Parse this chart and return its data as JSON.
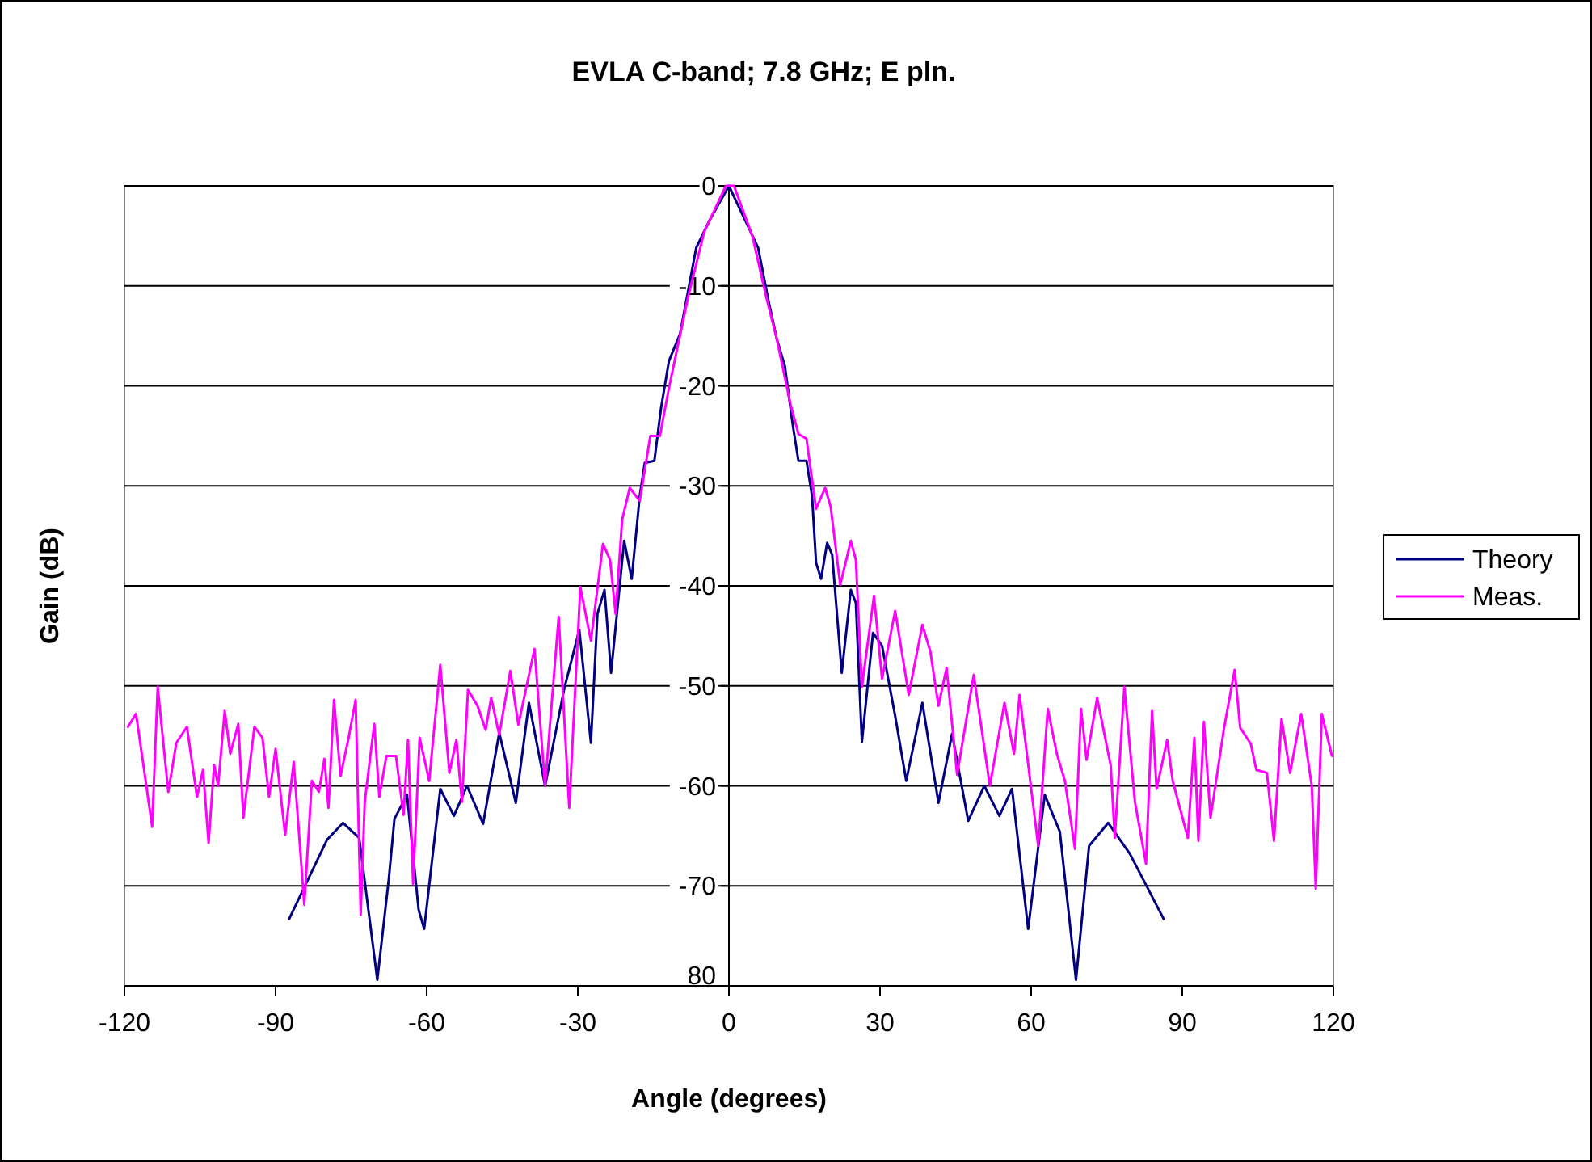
{
  "chart_data": {
    "type": "line",
    "title": "EVLA C-band; 7.8 GHz; E pln.",
    "xlabel": "Angle (degrees)",
    "ylabel": "Gain (dB)",
    "xlim": [
      -120,
      120
    ],
    "xticks": [
      -120,
      -90,
      -60,
      -30,
      0,
      30,
      60,
      90,
      120
    ],
    "ylim": [
      -80,
      0
    ],
    "yticks": [
      {
        "value": 0,
        "label": "0"
      },
      {
        "value": -10,
        "label": "-10"
      },
      {
        "value": -20,
        "label": "-20"
      },
      {
        "value": -30,
        "label": "-30"
      },
      {
        "value": -40,
        "label": "-40"
      },
      {
        "value": -50,
        "label": "-50"
      },
      {
        "value": -60,
        "label": "-60"
      },
      {
        "value": -70,
        "label": "-70"
      },
      {
        "value": -80,
        "label": "80"
      }
    ],
    "grid": "y",
    "legend": "right",
    "marker": "none",
    "line_style": "solid",
    "series": [
      {
        "name": "Theory",
        "color": "#000080",
        "x": [
          -87.3,
          -79.8,
          -76.6,
          -73.4,
          -69.8,
          -67.5,
          -66.4,
          -63.9,
          -61.6,
          -60.5,
          -57.3,
          -54.6,
          -52,
          -48.8,
          -45.6,
          -42.3,
          -39.7,
          -36.5,
          -32.7,
          -29.7,
          -27.4,
          -26.1,
          -24.7,
          -23.4,
          -20.8,
          -19.3,
          -17.7,
          -16.7,
          -14.8,
          -13.5,
          -11.9,
          -9.7,
          -6.5,
          -3.9,
          0,
          5.8,
          7.9,
          9.5,
          11.1,
          12.7,
          13.8,
          15.4,
          16.5,
          17.3,
          18.3,
          19.5,
          20.5,
          22.4,
          24.2,
          25.2,
          26.4,
          28.6,
          30.4,
          33,
          35.2,
          38.4,
          41.6,
          44.3,
          47.5,
          50.7,
          53.7,
          56.2,
          59.4,
          62.7,
          65.7,
          68.9,
          71.5,
          75.3,
          79.6,
          86.3
        ],
        "values": [
          -73.3,
          -65.4,
          -63.7,
          -65.2,
          -79.4,
          -69.2,
          -63.3,
          -60.9,
          -72.4,
          -74.3,
          -60.3,
          -63,
          -60,
          -63.8,
          -54.7,
          -61.7,
          -51.7,
          -60,
          -50.3,
          -44.4,
          -55.7,
          -42.8,
          -40.4,
          -48.7,
          -35.5,
          -39.3,
          -31,
          -27.7,
          -27.5,
          -22.3,
          -17.5,
          -14.8,
          -6.2,
          -3.5,
          0,
          -6.2,
          -11.6,
          -15.3,
          -18,
          -24,
          -27.5,
          -27.5,
          -31,
          -37.7,
          -39.3,
          -35.7,
          -36.9,
          -48.7,
          -40.4,
          -41.7,
          -55.6,
          -44.7,
          -46,
          -53,
          -59.5,
          -51.7,
          -61.7,
          -54.8,
          -63.5,
          -60,
          -63,
          -60.3,
          -74.3,
          -60.9,
          -64.6,
          -79.4,
          -66,
          -63.7,
          -66.8,
          -73.3
        ]
      },
      {
        "name": "Meas.",
        "color": "#ff00ff",
        "x": [
          -119.3,
          -117.7,
          -116.1,
          -114.5,
          -113.4,
          -111.3,
          -109.7,
          -107.6,
          -105.6,
          -104.4,
          -103.3,
          -102.2,
          -101.4,
          -100.1,
          -99,
          -97.4,
          -96.4,
          -94.2,
          -92.6,
          -91.3,
          -90,
          -88.1,
          -86.4,
          -84.3,
          -82.8,
          -81.4,
          -80.3,
          -79.5,
          -78.4,
          -77.1,
          -75.5,
          -74.1,
          -73.1,
          -72.3,
          -70.4,
          -69.4,
          -68,
          -66.1,
          -64.6,
          -63.7,
          -62.7,
          -61.4,
          -59.5,
          -57.3,
          -55.5,
          -54.1,
          -53,
          -51.8,
          -49.9,
          -48.3,
          -47.2,
          -45.6,
          -43.4,
          -41.8,
          -38.6,
          -36.5,
          -33.8,
          -31.7,
          -29.5,
          -27.4,
          -25,
          -23.6,
          -22.5,
          -21.2,
          -19.7,
          -17.7,
          -15.6,
          -13.7,
          -11.9,
          -8.1,
          -4.9,
          -0.6,
          1,
          4.7,
          7.4,
          9.5,
          12.2,
          13.8,
          15.4,
          17.3,
          19.1,
          20.2,
          22.1,
          24.2,
          25.2,
          26.4,
          28.8,
          30.4,
          33,
          35.7,
          38.4,
          40,
          41.6,
          43.2,
          45.3,
          48.6,
          51.8,
          54.7,
          56.6,
          57.7,
          59.3,
          61.4,
          63.3,
          65.1,
          66.7,
          68.7,
          69.9,
          71,
          73.1,
          75.8,
          76.6,
          78.5,
          80.6,
          82.8,
          84,
          84.9,
          87,
          88.1,
          91.1,
          92.4,
          93.2,
          94.3,
          95.6,
          98.3,
          100.4,
          101.5,
          103.6,
          104.7,
          106.8,
          108.2,
          109.7,
          111.4,
          113.6,
          115.7,
          116.5,
          117.7,
          119.7,
          120
        ],
        "values": [
          -54.1,
          -52.8,
          -58.4,
          -64.1,
          -50.1,
          -60.6,
          -55.7,
          -54.1,
          -61.1,
          -58.4,
          -65.7,
          -57.9,
          -60,
          -52.5,
          -56.8,
          -53.8,
          -63.2,
          -54.1,
          -55.2,
          -61.1,
          -56.3,
          -64.9,
          -57.6,
          -71.9,
          -59.5,
          -60.6,
          -57.3,
          -62.2,
          -51.4,
          -59,
          -55.2,
          -51.4,
          -72.9,
          -61.6,
          -53.8,
          -61.1,
          -57,
          -57,
          -62.9,
          -55.4,
          -69.8,
          -55.2,
          -59.5,
          -47.9,
          -58.7,
          -55.4,
          -61.6,
          -50.4,
          -52,
          -54.4,
          -51.2,
          -54.9,
          -48.5,
          -53.9,
          -46.3,
          -60,
          -43.1,
          -62.2,
          -40.1,
          -45.5,
          -35.8,
          -37.4,
          -42.8,
          -33.4,
          -30.2,
          -31.5,
          -25,
          -25,
          -20.2,
          -11.1,
          -4.6,
          0,
          0,
          -5.1,
          -11.1,
          -15.3,
          -21.8,
          -24.8,
          -25.3,
          -32.3,
          -30.2,
          -32.1,
          -39.9,
          -35.5,
          -37.4,
          -50.1,
          -41,
          -49.3,
          -42.5,
          -50.9,
          -43.9,
          -46.6,
          -52,
          -48.2,
          -58.9,
          -48.9,
          -60,
          -51.7,
          -56.8,
          -50.9,
          -57.4,
          -66,
          -52.3,
          -56.8,
          -59.5,
          -66.3,
          -52.3,
          -57.4,
          -51.2,
          -58,
          -65.2,
          -50.1,
          -61.6,
          -67.8,
          -52.5,
          -60.3,
          -55.4,
          -59.5,
          -65.2,
          -55.2,
          -65.5,
          -53.6,
          -63.2,
          -54.2,
          -48.4,
          -54.2,
          -55.8,
          -58.4,
          -58.7,
          -65.5,
          -53.3,
          -58.7,
          -52.8,
          -60,
          -70.3,
          -52.8,
          -57,
          -57
        ]
      }
    ]
  }
}
